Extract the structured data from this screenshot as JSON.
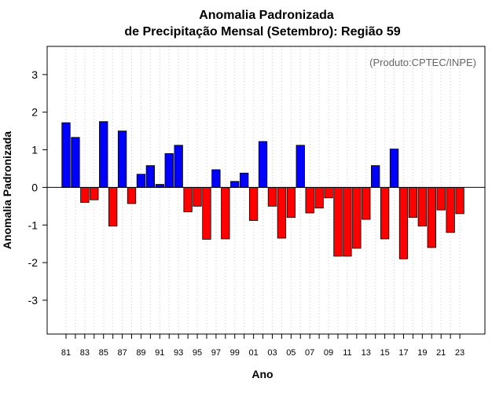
{
  "chart_data": {
    "type": "bar",
    "title": "Anomalia Padronizada",
    "subtitle": "de Precipitação Mensal (Setembro): Região 59",
    "xlabel": "Ano",
    "ylabel": "Anomalia Padronizada",
    "annotation": "(Produto:CPTEC/INPE)",
    "ylim": [
      -3.9,
      3.75
    ],
    "yticks": [
      -3,
      -2,
      -1,
      0,
      1,
      2,
      3
    ],
    "xtick_labels": [
      "81",
      "83",
      "85",
      "87",
      "89",
      "91",
      "93",
      "95",
      "97",
      "99",
      "01",
      "03",
      "05",
      "07",
      "09",
      "11",
      "13",
      "15",
      "17",
      "19",
      "21",
      "23"
    ],
    "categories": [
      "81",
      "82",
      "83",
      "84",
      "85",
      "86",
      "87",
      "88",
      "89",
      "90",
      "91",
      "92",
      "93",
      "94",
      "95",
      "96",
      "97",
      "98",
      "99",
      "00",
      "01",
      "02",
      "03",
      "04",
      "05",
      "06",
      "07",
      "08",
      "09",
      "10",
      "11",
      "12",
      "13",
      "14",
      "15",
      "16",
      "17",
      "18",
      "19",
      "20",
      "21",
      "22",
      "23"
    ],
    "values": [
      1.72,
      1.33,
      -0.4,
      -0.33,
      1.75,
      -1.03,
      1.5,
      -0.43,
      0.35,
      0.58,
      0.08,
      0.9,
      1.12,
      -0.65,
      -0.5,
      -1.38,
      0.47,
      -1.37,
      0.16,
      0.38,
      -0.88,
      1.22,
      -0.5,
      -1.35,
      -0.8,
      1.12,
      -0.68,
      -0.55,
      -0.28,
      -1.83,
      -1.83,
      -1.62,
      -0.85,
      0.58,
      -1.37,
      1.02,
      -1.9,
      -0.8,
      -1.03,
      -1.6,
      -0.6,
      -1.2,
      -0.7
    ],
    "positive_color": "#0000ff",
    "negative_color": "#ff0000",
    "grid": true
  }
}
